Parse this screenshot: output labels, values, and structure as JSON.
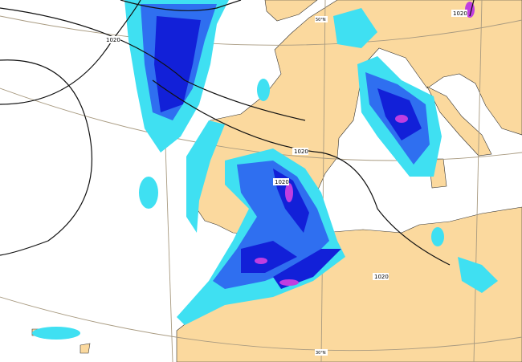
{
  "map": {
    "colors": {
      "sea": "#ffffff",
      "land": "#fbd99e",
      "precip_light": "#3fe0f2",
      "precip_medium": "#2f6ff0",
      "precip_heavy": "#1220d8",
      "precip_extreme": "#c03ee0",
      "isobar": "#111111",
      "graticule": "#a89a80"
    },
    "isobar_labels": [
      "1020",
      "1020",
      "1020",
      "1020",
      "1020"
    ],
    "latitude_labels": [
      "50°N",
      "30°N"
    ]
  }
}
